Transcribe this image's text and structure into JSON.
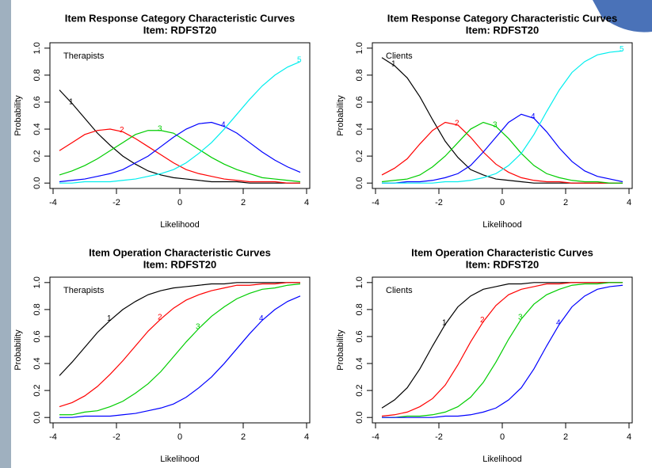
{
  "chart_data": [
    {
      "type": "line",
      "title": "Item Response Category Characteristic Curves",
      "subtitle": "Item: RDFST20",
      "annotation": "Therapists",
      "xlabel": "Likelihood",
      "ylabel": "Probability",
      "x": [
        -3.8,
        -3.4,
        -3.0,
        -2.6,
        -2.2,
        -1.8,
        -1.4,
        -1.0,
        -0.6,
        -0.2,
        0.2,
        0.6,
        1.0,
        1.4,
        1.8,
        2.2,
        2.6,
        3.0,
        3.4,
        3.8
      ],
      "series": [
        {
          "name": "1",
          "color": "#000000",
          "values": [
            0.69,
            0.59,
            0.48,
            0.37,
            0.28,
            0.2,
            0.14,
            0.09,
            0.06,
            0.04,
            0.03,
            0.02,
            0.01,
            0.01,
            0.01,
            0,
            0,
            0,
            0,
            0
          ]
        },
        {
          "name": "2",
          "color": "#ff0000",
          "values": [
            0.24,
            0.3,
            0.36,
            0.39,
            0.4,
            0.38,
            0.33,
            0.27,
            0.21,
            0.15,
            0.1,
            0.07,
            0.05,
            0.03,
            0.02,
            0.01,
            0.01,
            0.01,
            0,
            0
          ]
        },
        {
          "name": "3",
          "color": "#00cd00",
          "values": [
            0.06,
            0.09,
            0.13,
            0.18,
            0.24,
            0.3,
            0.36,
            0.39,
            0.39,
            0.37,
            0.31,
            0.25,
            0.19,
            0.14,
            0.1,
            0.07,
            0.04,
            0.03,
            0.02,
            0.01
          ]
        },
        {
          "name": "4",
          "color": "#0000ff",
          "values": [
            0.01,
            0.02,
            0.03,
            0.05,
            0.07,
            0.1,
            0.15,
            0.2,
            0.27,
            0.34,
            0.4,
            0.44,
            0.45,
            0.42,
            0.37,
            0.3,
            0.23,
            0.17,
            0.12,
            0.08
          ]
        },
        {
          "name": "5",
          "color": "#00eeee",
          "values": [
            0,
            0,
            0.01,
            0.01,
            0.01,
            0.02,
            0.03,
            0.05,
            0.07,
            0.1,
            0.15,
            0.22,
            0.3,
            0.4,
            0.51,
            0.62,
            0.72,
            0.8,
            0.86,
            0.9
          ]
        }
      ],
      "xlim": [
        -4.1,
        4.1
      ],
      "ylim": [
        -0.04,
        1.04
      ],
      "xticks": [
        -4,
        -2,
        0,
        2,
        4
      ],
      "yticks": [
        {
          "value": 0,
          "label": "0.0"
        },
        0.2,
        0.4,
        0.6,
        0.8,
        {
          "value": 1,
          "label": "1.0"
        }
      ],
      "grid": false
    },
    {
      "type": "line",
      "title": "Item Response Category Characteristic Curves",
      "subtitle": "Item: RDFST20",
      "annotation": "Clients",
      "xlabel": "Likelihood",
      "ylabel": "Probability",
      "x": [
        -3.8,
        -3.4,
        -3.0,
        -2.6,
        -2.2,
        -1.8,
        -1.4,
        -1.0,
        -0.6,
        -0.2,
        0.2,
        0.6,
        1.0,
        1.4,
        1.8,
        2.2,
        2.6,
        3.0,
        3.4,
        3.8
      ],
      "series": [
        {
          "name": "1",
          "color": "#000000",
          "values": [
            0.93,
            0.87,
            0.78,
            0.64,
            0.47,
            0.31,
            0.19,
            0.1,
            0.06,
            0.03,
            0.02,
            0.01,
            0,
            0,
            0,
            0,
            0,
            0,
            0,
            0
          ]
        },
        {
          "name": "2",
          "color": "#ff0000",
          "values": [
            0.06,
            0.11,
            0.18,
            0.29,
            0.39,
            0.45,
            0.43,
            0.34,
            0.23,
            0.14,
            0.08,
            0.04,
            0.02,
            0.01,
            0.01,
            0,
            0,
            0,
            0,
            0
          ]
        },
        {
          "name": "3",
          "color": "#00cd00",
          "values": [
            0.01,
            0.02,
            0.03,
            0.06,
            0.12,
            0.2,
            0.3,
            0.4,
            0.45,
            0.42,
            0.33,
            0.22,
            0.13,
            0.07,
            0.04,
            0.02,
            0.01,
            0.01,
            0,
            0
          ]
        },
        {
          "name": "4",
          "color": "#0000ff",
          "values": [
            0,
            0,
            0.01,
            0.01,
            0.02,
            0.04,
            0.07,
            0.13,
            0.23,
            0.34,
            0.45,
            0.51,
            0.48,
            0.38,
            0.26,
            0.16,
            0.09,
            0.05,
            0.03,
            0.01
          ]
        },
        {
          "name": "5",
          "color": "#00eeee",
          "values": [
            0,
            0,
            0,
            0,
            0,
            0.01,
            0.01,
            0.02,
            0.04,
            0.07,
            0.13,
            0.22,
            0.36,
            0.53,
            0.69,
            0.82,
            0.9,
            0.95,
            0.97,
            0.98
          ]
        }
      ],
      "xlim": [
        -4.1,
        4.1
      ],
      "ylim": [
        -0.04,
        1.04
      ],
      "xticks": [
        -4,
        -2,
        0,
        2,
        4
      ],
      "yticks": [
        {
          "value": 0,
          "label": "0.0"
        },
        0.2,
        0.4,
        0.6,
        0.8,
        {
          "value": 1,
          "label": "1.0"
        }
      ],
      "grid": false
    },
    {
      "type": "line",
      "title": "Item Operation Characteristic Curves",
      "subtitle": "Item: RDFST20",
      "annotation": "Therapists",
      "xlabel": "Likelihood",
      "ylabel": "Probability",
      "x": [
        -3.8,
        -3.4,
        -3.0,
        -2.6,
        -2.2,
        -1.8,
        -1.4,
        -1.0,
        -0.6,
        -0.2,
        0.2,
        0.6,
        1.0,
        1.4,
        1.8,
        2.2,
        2.6,
        3.0,
        3.4,
        3.8
      ],
      "series": [
        {
          "name": "1",
          "color": "#000000",
          "values": [
            0.31,
            0.41,
            0.52,
            0.63,
            0.72,
            0.8,
            0.86,
            0.91,
            0.94,
            0.96,
            0.97,
            0.98,
            0.99,
            0.99,
            1,
            1,
            1,
            1,
            1,
            1
          ]
        },
        {
          "name": "2",
          "color": "#ff0000",
          "values": [
            0.08,
            0.11,
            0.16,
            0.23,
            0.32,
            0.42,
            0.53,
            0.64,
            0.73,
            0.81,
            0.87,
            0.91,
            0.94,
            0.96,
            0.98,
            0.98,
            0.99,
            0.99,
            1,
            1
          ]
        },
        {
          "name": "3",
          "color": "#00cd00",
          "values": [
            0.02,
            0.02,
            0.04,
            0.05,
            0.08,
            0.12,
            0.18,
            0.25,
            0.34,
            0.45,
            0.56,
            0.66,
            0.75,
            0.82,
            0.88,
            0.92,
            0.95,
            0.96,
            0.98,
            0.99
          ]
        },
        {
          "name": "4",
          "color": "#0000ff",
          "values": [
            0,
            0,
            0.01,
            0.01,
            0.01,
            0.02,
            0.03,
            0.05,
            0.07,
            0.1,
            0.15,
            0.22,
            0.3,
            0.4,
            0.51,
            0.62,
            0.72,
            0.8,
            0.86,
            0.9
          ]
        }
      ],
      "xlim": [
        -4.1,
        4.1
      ],
      "ylim": [
        -0.04,
        1.04
      ],
      "xticks": [
        -4,
        -2,
        0,
        2,
        4
      ],
      "yticks": [
        {
          "value": 0,
          "label": "0.0"
        },
        0.2,
        0.4,
        0.6,
        0.8,
        {
          "value": 1,
          "label": "1.0"
        }
      ],
      "grid": false
    },
    {
      "type": "line",
      "title": "Item Operation Characteristic Curves",
      "subtitle": "Item: RDFST20",
      "annotation": "Clients",
      "xlabel": "Likelihood",
      "ylabel": "Probability",
      "x": [
        -3.8,
        -3.4,
        -3.0,
        -2.6,
        -2.2,
        -1.8,
        -1.4,
        -1.0,
        -0.6,
        -0.2,
        0.2,
        0.6,
        1.0,
        1.4,
        1.8,
        2.2,
        2.6,
        3.0,
        3.4,
        3.8
      ],
      "series": [
        {
          "name": "1",
          "color": "#000000",
          "values": [
            0.07,
            0.13,
            0.22,
            0.36,
            0.53,
            0.69,
            0.82,
            0.9,
            0.95,
            0.97,
            0.99,
            0.99,
            1,
            1,
            1,
            1,
            1,
            1,
            1,
            1
          ]
        },
        {
          "name": "2",
          "color": "#ff0000",
          "values": [
            0.01,
            0.02,
            0.04,
            0.08,
            0.14,
            0.24,
            0.39,
            0.56,
            0.71,
            0.83,
            0.91,
            0.95,
            0.97,
            0.99,
            0.99,
            1,
            1,
            1,
            1,
            1
          ]
        },
        {
          "name": "3",
          "color": "#00cd00",
          "values": [
            0,
            0,
            0.01,
            0.01,
            0.02,
            0.04,
            0.08,
            0.15,
            0.26,
            0.41,
            0.58,
            0.73,
            0.84,
            0.91,
            0.95,
            0.98,
            0.99,
            0.99,
            1,
            1
          ]
        },
        {
          "name": "4",
          "color": "#0000ff",
          "values": [
            0,
            0,
            0,
            0,
            0,
            0.01,
            0.01,
            0.02,
            0.04,
            0.07,
            0.13,
            0.22,
            0.36,
            0.53,
            0.69,
            0.82,
            0.9,
            0.95,
            0.97,
            0.98
          ]
        }
      ],
      "xlim": [
        -4.1,
        4.1
      ],
      "ylim": [
        -0.04,
        1.04
      ],
      "xticks": [
        -4,
        -2,
        0,
        2,
        4
      ],
      "yticks": [
        {
          "value": 0,
          "label": "0.0"
        },
        0.2,
        0.4,
        0.6,
        0.8,
        {
          "value": 1,
          "label": "1.0"
        }
      ],
      "grid": false
    }
  ]
}
